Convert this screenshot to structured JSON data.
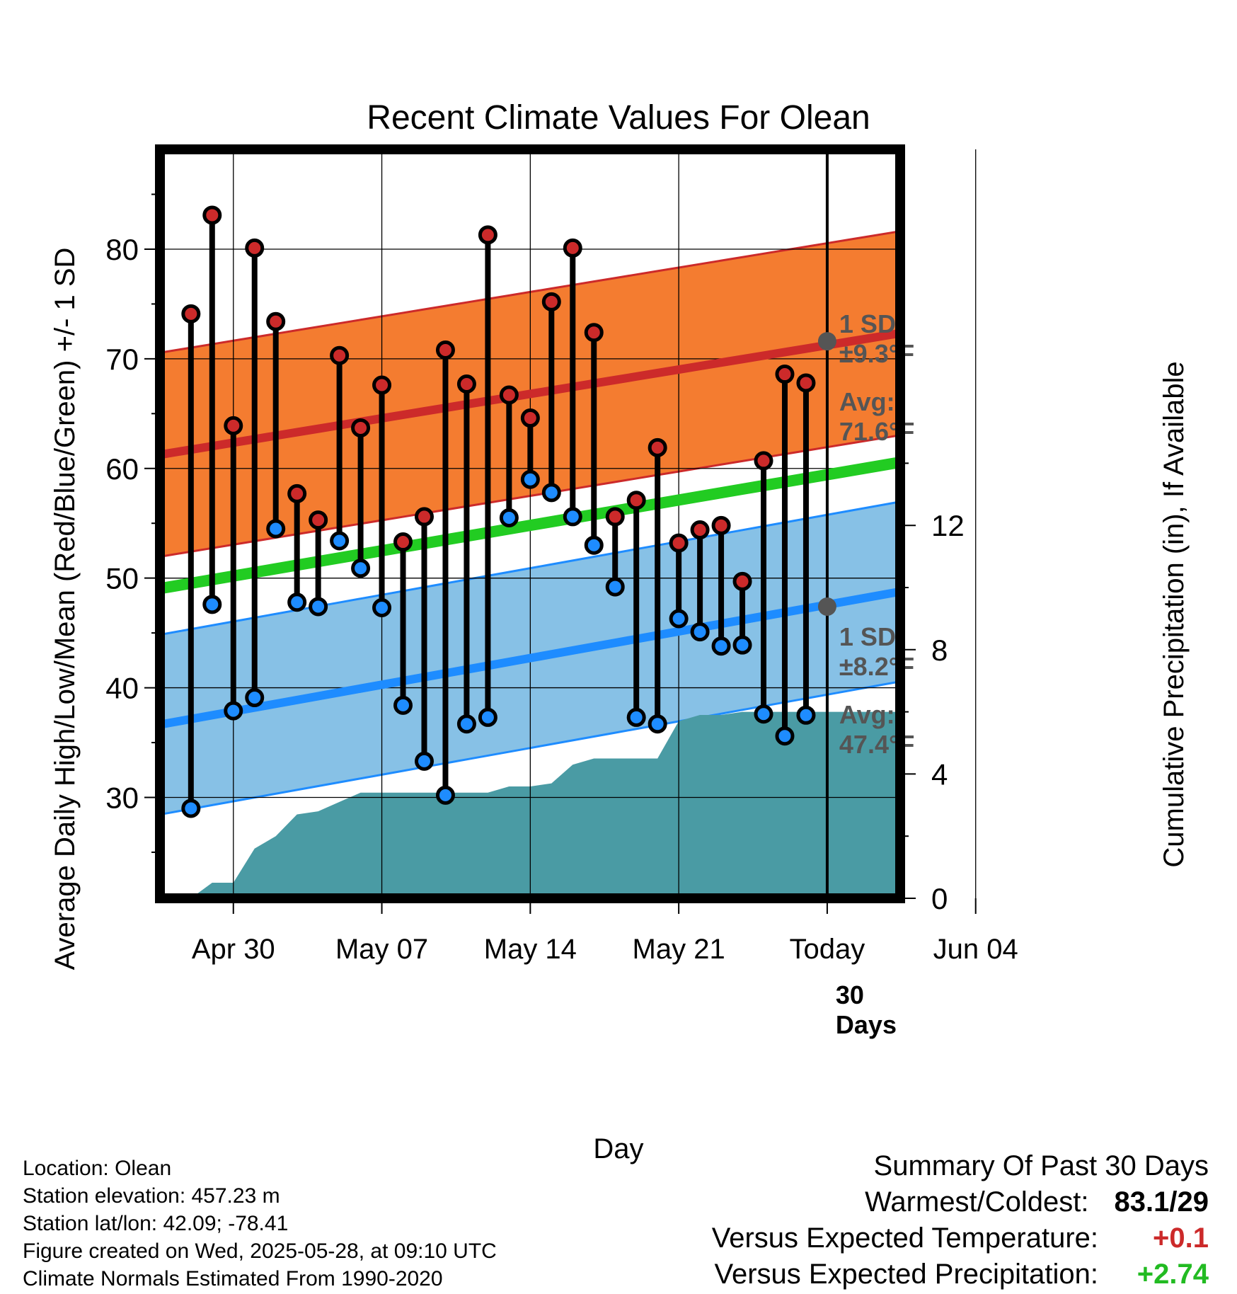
{
  "chart_data": {
    "type": "line",
    "title": "Recent Climate Values For Olean",
    "xlabel": "Day",
    "ylabel": "Average Daily High/Low/Mean (Red/Blue/Green) +/- 1 SD",
    "y2label": "Cumulative Precipitation (in), If Available",
    "x_tick_labels": [
      "Apr 30",
      "May 07",
      "May 14",
      "May 21",
      "Today",
      "Jun 04"
    ],
    "y_ticks": [
      30,
      40,
      50,
      60,
      70,
      80
    ],
    "y2_ticks": [
      0,
      4,
      8,
      12
    ],
    "ylim": [
      20.8,
      89.1
    ],
    "y2lim": [
      0,
      24.1
    ],
    "x_range_days": [
      "2025-04-27",
      "2025-06-06"
    ],
    "grid": true,
    "daily": {
      "dates": [
        "2025-04-28",
        "2025-04-29",
        "2025-04-30",
        "2025-05-01",
        "2025-05-02",
        "2025-05-03",
        "2025-05-04",
        "2025-05-05",
        "2025-05-06",
        "2025-05-07",
        "2025-05-08",
        "2025-05-09",
        "2025-05-10",
        "2025-05-11",
        "2025-05-12",
        "2025-05-13",
        "2025-05-14",
        "2025-05-15",
        "2025-05-16",
        "2025-05-17",
        "2025-05-18",
        "2025-05-19",
        "2025-05-20",
        "2025-05-21",
        "2025-05-22",
        "2025-05-23",
        "2025-05-24",
        "2025-05-25",
        "2025-05-26",
        "2025-05-27"
      ],
      "high": [
        74.1,
        83.1,
        63.9,
        80.1,
        73.4,
        57.7,
        55.3,
        70.3,
        63.7,
        67.6,
        53.3,
        55.6,
        70.8,
        67.7,
        81.3,
        66.7,
        64.6,
        75.2,
        80.1,
        72.4,
        55.6,
        57.1,
        61.9,
        53.2,
        54.4,
        54.8,
        49.7,
        60.7,
        68.6,
        67.8
      ],
      "low": [
        29,
        47.6,
        37.9,
        39.1,
        54.5,
        47.8,
        47.4,
        53.4,
        50.9,
        47.3,
        38.4,
        33.3,
        30.2,
        36.7,
        37.3,
        55.5,
        59.0,
        57.8,
        55.6,
        53.0,
        49.2,
        37.3,
        36.7,
        46.3,
        45.1,
        43.8,
        43.9,
        37.6,
        35.6,
        37.5
      ]
    },
    "normals": {
      "dates": [
        "2025-04-27",
        "2025-06-06"
      ],
      "high_avg": [
        61.4,
        74.1
      ],
      "high_sd": 9.3,
      "low_avg": [
        36.8,
        50.7
      ],
      "low_sd": 8.2,
      "mean_avg": [
        49.2,
        62.4
      ]
    },
    "precip_cumulative": {
      "dates": [
        "2025-04-28",
        "2025-04-29",
        "2025-04-30",
        "2025-05-01",
        "2025-05-02",
        "2025-05-03",
        "2025-05-04",
        "2025-05-05",
        "2025-05-06",
        "2025-05-07",
        "2025-05-08",
        "2025-05-09",
        "2025-05-10",
        "2025-05-11",
        "2025-05-12",
        "2025-05-13",
        "2025-05-14",
        "2025-05-15",
        "2025-05-16",
        "2025-05-17",
        "2025-05-18",
        "2025-05-19",
        "2025-05-20",
        "2025-05-21",
        "2025-05-22",
        "2025-05-23",
        "2025-05-24",
        "2025-05-25",
        "2025-05-26",
        "2025-05-27",
        "2025-06-06"
      ],
      "values": [
        0.0,
        0.5,
        0.5,
        1.6,
        2.0,
        2.7,
        2.8,
        3.1,
        3.4,
        3.4,
        3.4,
        3.4,
        3.4,
        3.4,
        3.4,
        3.6,
        3.6,
        3.7,
        4.3,
        4.5,
        4.5,
        4.5,
        4.5,
        5.7,
        5.9,
        5.9,
        6.0,
        6.0,
        6.0,
        6.0,
        6.0
      ]
    },
    "today": {
      "label": "Today",
      "date": "2025-05-28",
      "window_label_line1": "30",
      "window_label_line2": "Days"
    },
    "annotations": {
      "high_sd_line1": "1 SD:",
      "high_sd_line2": "±9.3°F",
      "high_avg_line1": "Avg:",
      "high_avg_line2": "71.6°F",
      "low_sd_line1": "1 SD:",
      "low_sd_line2": "±8.2°F",
      "low_avg_line1": "Avg:",
      "low_avg_line2": "47.4°F",
      "high_avg_value": 71.6,
      "low_avg_value": 47.4
    },
    "colors": {
      "high_band": "#f47c30",
      "high_line": "#cc2a2a",
      "low_band": "#87c1e6",
      "low_line": "#1e8cff",
      "mean_line": "#22cc22",
      "precip": "#4a9ba4",
      "high_dot": "#cc2a2a",
      "low_dot": "#1e8cff",
      "annotation": "#555555"
    }
  },
  "info": {
    "location": "Location: Olean",
    "elevation": "Station elevation: 457.23 m",
    "latlon": "Station lat/lon: 42.09; -78.41",
    "created": "Figure created on Wed, 2025-05-28, at 09:10 UTC",
    "normals": "Climate Normals Estimated From 1990-2020"
  },
  "summary": {
    "title": "Summary Of Past 30 Days",
    "warm_cold_label": "Warmest/Coldest:",
    "warm_cold_value": "83.1/29",
    "temp_label": "Versus Expected Temperature:",
    "temp_value": "+0.1",
    "temp_color": "#cc2a2a",
    "precip_label": "Versus Expected Precipitation:",
    "precip_value": "+2.74",
    "precip_color": "#22bb22"
  }
}
